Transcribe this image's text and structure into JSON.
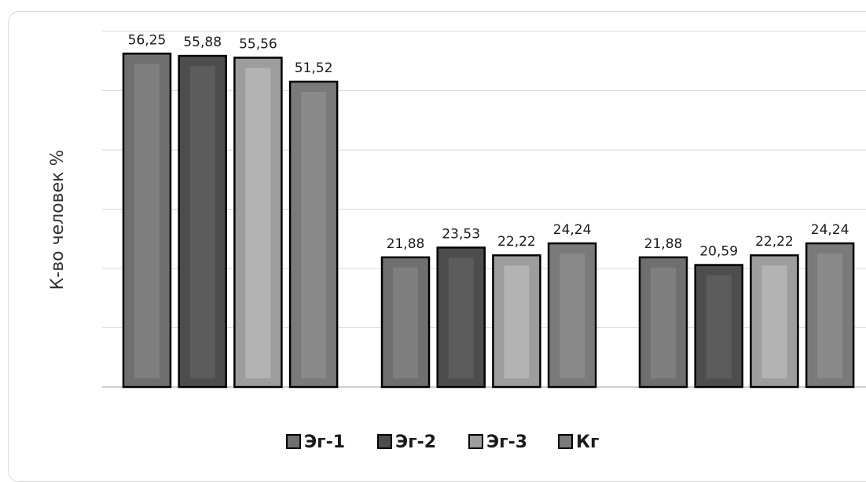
{
  "chart_data": {
    "type": "bar",
    "title": "",
    "xlabel": "",
    "ylabel": "К-во человек %",
    "ylim": [
      0,
      60
    ],
    "grid": true,
    "legend_position": "bottom",
    "categories": [
      "",
      "",
      ""
    ],
    "series": [
      {
        "name": "Эг-1",
        "values": [
          56.25,
          21.88,
          21.88
        ],
        "labels": [
          "56,25",
          "21,88",
          "21,88"
        ],
        "color": "#6f6f6f",
        "inner_color": "#7f7f7f"
      },
      {
        "name": "Эг-2",
        "values": [
          55.88,
          23.53,
          20.59
        ],
        "labels": [
          "55,88",
          "23,53",
          "20,59"
        ],
        "color": "#4d4d4d",
        "inner_color": "#5c5c5c"
      },
      {
        "name": "Эг-3",
        "values": [
          55.56,
          22.22,
          22.22
        ],
        "labels": [
          "55,56",
          "22,22",
          "22,22"
        ],
        "color": "#9d9d9d",
        "inner_color": "#b3b3b3"
      },
      {
        "name": "Кг",
        "values": [
          51.52,
          24.24,
          24.24
        ],
        "labels": [
          "51,52",
          "24,24",
          "24,24"
        ],
        "color": "#7a7a7a",
        "inner_color": "#8a8a8a"
      }
    ]
  }
}
